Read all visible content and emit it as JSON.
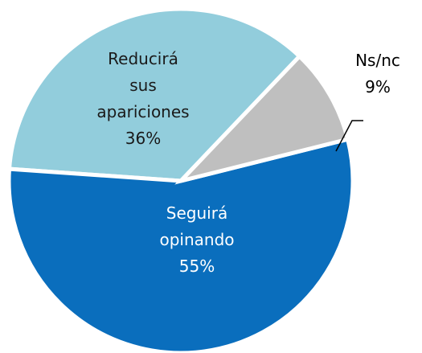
{
  "chart_data": {
    "type": "pie",
    "categories": [
      "Ns/nc",
      "Seguirá opinando",
      "Reducirá sus apariciones"
    ],
    "values": [
      9,
      55,
      36
    ],
    "value_labels": [
      "9%",
      "55%",
      "36%"
    ],
    "colors": [
      "#bfbfbf",
      "#0a6ebd",
      "#92cddc"
    ]
  }
}
